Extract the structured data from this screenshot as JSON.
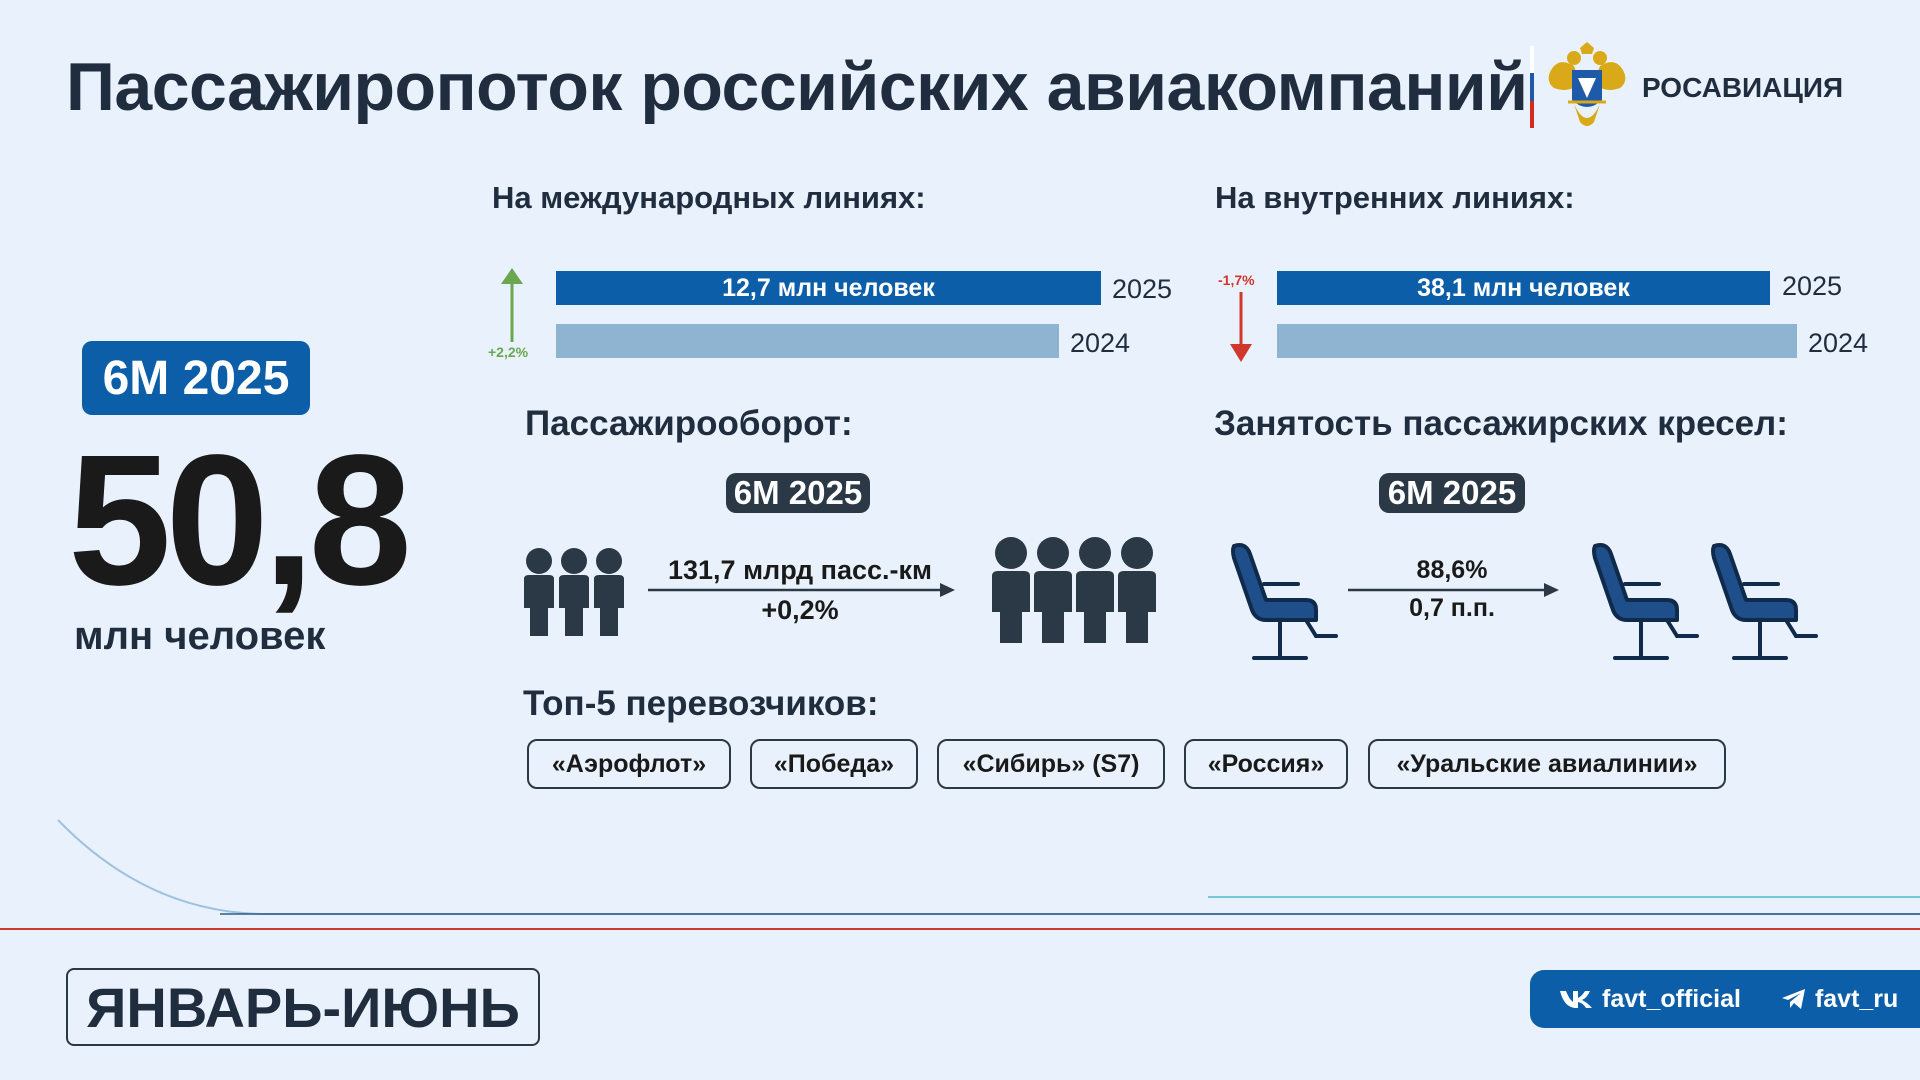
{
  "header": {
    "title": "Пассажиропоток российских авиакомпаний",
    "brand": "РОСАВИАЦИЯ",
    "emblem_icon": "double-headed-eagle-emblem",
    "flag_colors": [
      "#ffffff",
      "#1f5aa8",
      "#d52b1e"
    ]
  },
  "kpi": {
    "period": "6М 2025",
    "value": "50,8",
    "unit": "млн человек"
  },
  "international": {
    "heading": "На международных линиях:",
    "value_2025_label": "12,7 млн человек",
    "year_2025": "2025",
    "year_2024": "2024",
    "delta": "+2,2%",
    "direction": "up",
    "bar_ratio_2024_to_2025": 0.978
  },
  "domestic": {
    "heading": "На внутренних линиях:",
    "value_2025_label": "38,1 млн человек",
    "year_2025": "2025",
    "year_2024": "2024",
    "delta": "-1,7%",
    "direction": "down",
    "bar_ratio_2025_to_2024": 0.983
  },
  "turnover": {
    "heading": "Пассажирооборот:",
    "period": "6М 2025",
    "value": "131,7 млрд пасс.-км",
    "change": "+0,2%",
    "icon_left": "people-group-icon",
    "icon_right": "people-group-icon"
  },
  "occupancy": {
    "heading": "Занятость пассажирских кресел:",
    "period": "6М 2025",
    "value": "88,6%",
    "change": "0,7 п.п.",
    "icon": "airline-seat-icon"
  },
  "carriers": {
    "heading": "Топ-5 перевозчиков:",
    "items": [
      "«Аэрофлот»",
      "«Победа»",
      "«Сибирь» (S7)",
      "«Россия»",
      "«Уральские авиалинии»"
    ]
  },
  "footer": {
    "period": "ЯНВАРЬ-ИЮНЬ",
    "vk": "favt_official",
    "telegram": "favt_ru"
  },
  "colors": {
    "accent": "#0c5ea8",
    "bar_2024": "#8fb4d2",
    "dark": "#2b3846",
    "up": "#6aa84f",
    "down": "#d0372d",
    "background": "#e9f2fc"
  }
}
